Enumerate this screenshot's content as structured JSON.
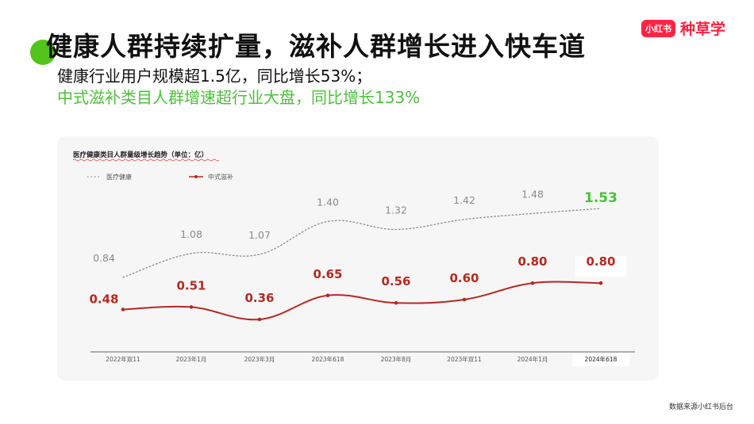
{
  "header": {
    "title": "健康人群持续扩量，滋补人群增长进入快车道",
    "subtitle_line1": "健康行业用户规模超1.5亿，同比增长53%；",
    "subtitle_line2": "中式滋补类目人群增速超行业大盘，同比增长133%"
  },
  "logo": {
    "badge": "小红书",
    "text": "种草学"
  },
  "footer": {
    "source": "数据来源小红书后台"
  },
  "colors": {
    "green": "#4cbf3a",
    "red": "#b22a22",
    "gray_line": "#888888",
    "brand": "#ff2442"
  },
  "chart_data": {
    "type": "line",
    "title": "医疗健康类目人群量级增长趋势（单位：亿）",
    "categories": [
      "2022年双11",
      "2023年1月",
      "2023年3月",
      "2023年618",
      "2023年8月",
      "2023年双11",
      "2024年1月",
      "2024年618"
    ],
    "series": [
      {
        "name": "医疗健康",
        "values": [
          0.84,
          1.08,
          1.07,
          1.4,
          1.32,
          1.42,
          1.48,
          1.53
        ],
        "style": "dotted",
        "color": "#888888"
      },
      {
        "name": "中式滋补",
        "values": [
          0.48,
          0.51,
          0.36,
          0.65,
          0.56,
          0.6,
          0.8,
          0.8
        ],
        "style": "solid",
        "color": "#b22a22"
      }
    ],
    "legend": "top-left",
    "grid": false
  }
}
